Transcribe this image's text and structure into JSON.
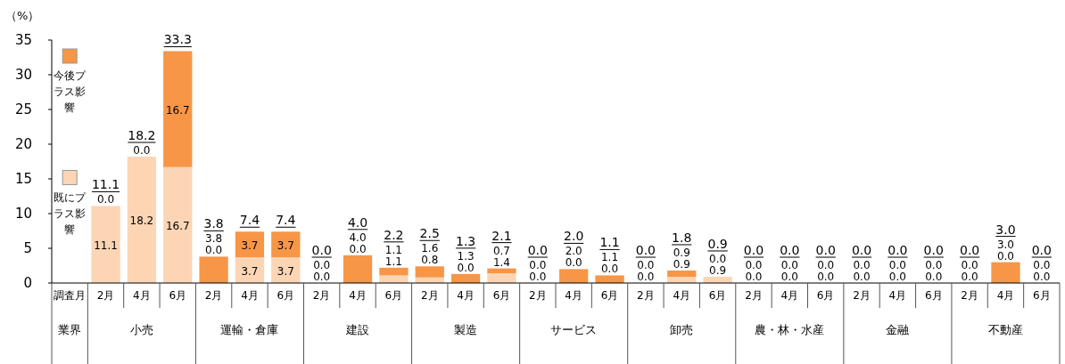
{
  "chart_data": {
    "type": "bar",
    "stacked": true,
    "ylabel": "（%）",
    "ylim": [
      0,
      35
    ],
    "yticks": [
      0,
      5,
      10,
      15,
      20,
      25,
      30,
      35
    ],
    "legend": "left",
    "categories": [
      "調査月",
      "2月",
      "4月",
      "6月",
      "2月",
      "4月",
      "6月",
      "2月",
      "4月",
      "6月",
      "2月",
      "4月",
      "6月",
      "2月",
      "4月",
      "6月",
      "2月",
      "4月",
      "6月",
      "2月",
      "4月",
      "6月",
      "2月",
      "4月",
      "6月",
      "2月",
      "4月",
      "6月"
    ],
    "series": [
      {
        "name": "既にプラス影響",
        "color": "#fcd5b5",
        "values": [
          null,
          11.1,
          18.2,
          16.7,
          0.0,
          3.7,
          3.7,
          0.0,
          0.0,
          1.1,
          0.8,
          0.0,
          1.4,
          0.0,
          0.0,
          0.0,
          0.0,
          0.9,
          0.9,
          0.0,
          0.0,
          0.0,
          0.0,
          0.0,
          0.0,
          0.0,
          0.0,
          0.0
        ],
        "value_labels": [
          null,
          "11.1",
          "18.2",
          "16.7",
          "0.0",
          "3.7",
          "3.7",
          "0.0",
          "0.0",
          "1.1",
          "0.8",
          "0.0",
          "1.4",
          "0.0",
          "0.0",
          "0.0",
          "0.0",
          "0.9",
          "0.9",
          "0.0",
          "0.0",
          "0.0",
          "0.0",
          "0.0",
          "0.0",
          "0.0",
          "0.0",
          "0.0"
        ]
      },
      {
        "name": "今後プラス影響",
        "color": "#f79646",
        "values": [
          null,
          0.0,
          0.0,
          16.7,
          3.8,
          3.7,
          3.7,
          0.0,
          4.0,
          1.1,
          1.6,
          1.3,
          0.7,
          0.0,
          2.0,
          1.1,
          0.0,
          0.9,
          0.0,
          0.0,
          0.0,
          0.0,
          0.0,
          0.0,
          0.0,
          0.0,
          3.0,
          0.0
        ],
        "value_labels": [
          null,
          "0.0",
          "0.0",
          "16.7",
          "3.8",
          "3.7",
          "3.7",
          "0.0",
          "4.0",
          "1.1",
          "1.6",
          "1.3",
          "0.7",
          "0.0",
          "2.0",
          "1.1",
          "0.0",
          "0.9",
          "0.0",
          "0.0",
          "0.0",
          "0.0",
          "0.0",
          "0.0",
          "0.0",
          "0.0",
          "3.0",
          "0.0"
        ]
      }
    ],
    "totals": [
      null,
      "11.1",
      "18.2",
      "33.3",
      "3.8",
      "7.4",
      "7.4",
      "0.0",
      "4.0",
      "2.2",
      "2.5",
      "1.3",
      "2.1",
      "0.0",
      "2.0",
      "1.1",
      "0.0",
      "1.8",
      "0.9",
      "0.0",
      "0.0",
      "0.0",
      "0.0",
      "0.0",
      "0.0",
      "0.0",
      "3.0",
      "0.0"
    ],
    "annotations": [
      "業界",
      "小売",
      "運輸・倉庫",
      "建設",
      "製造",
      "サービス",
      "卸売",
      "農・林・水産",
      "金融",
      "不動産"
    ]
  }
}
